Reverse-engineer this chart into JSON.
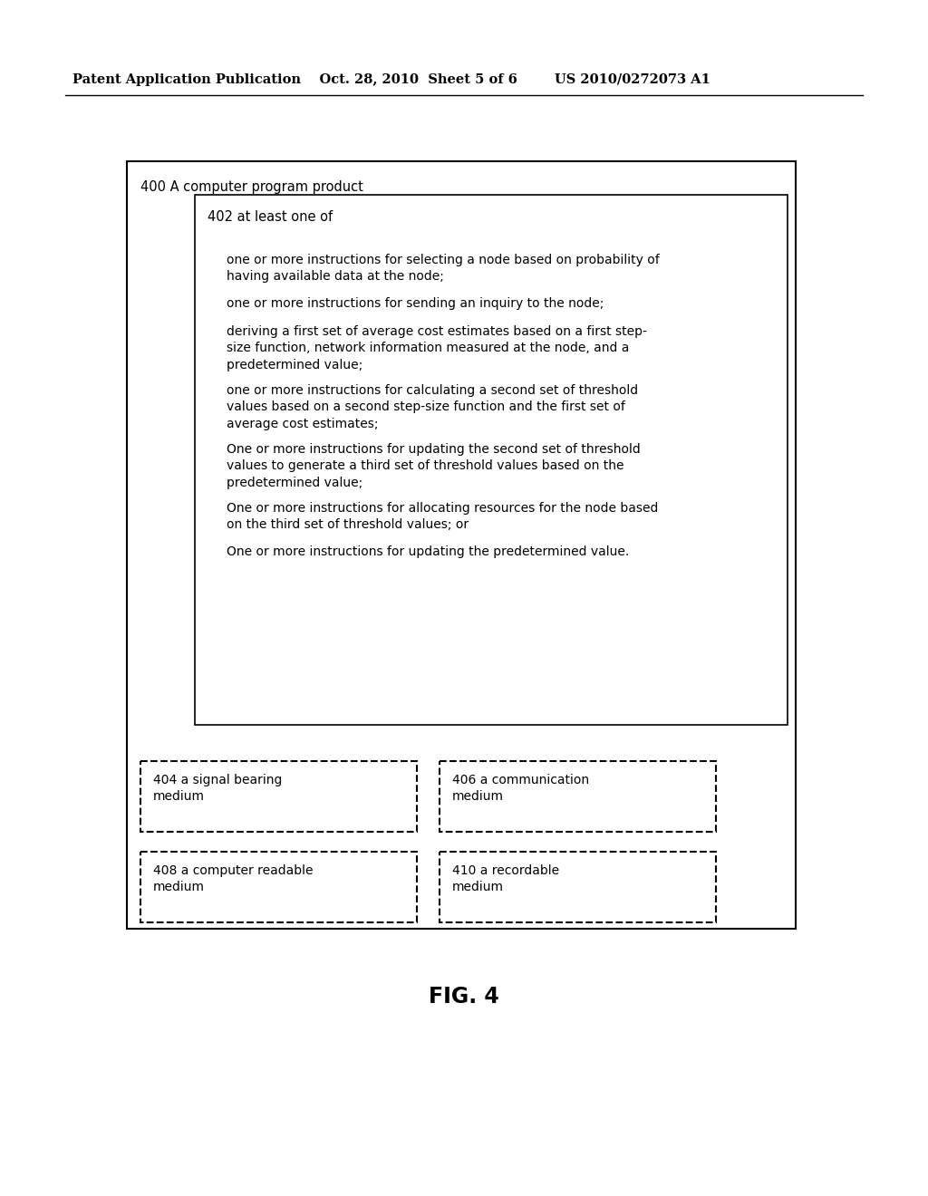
{
  "bg_color": "#ffffff",
  "header_line1": "Patent Application Publication    Oct. 28, 2010  Sheet 5 of 6        US 2010/0272073 A1",
  "fig_label": "FIG. 4",
  "outer_box_label": "400 A computer program product",
  "inner_box_label": "402 at least one of",
  "instructions": [
    "one or more instructions for selecting a node based on probability of\nhaving available data at the node;",
    "one or more instructions for sending an inquiry to the node;",
    "deriving a first set of average cost estimates based on a first step-\nsize function, network information measured at the node, and a\npredetermined value;",
    "one or more instructions for calculating a second set of threshold\nvalues based on a second step-size function and the first set of\naverage cost estimates;",
    "One or more instructions for updating the second set of threshold\nvalues to generate a third set of threshold values based on the\npredetermined value;",
    "One or more instructions for allocating resources for the node based\non the third set of threshold values; or",
    "One or more instructions for updating the predetermined value."
  ],
  "bottom_boxes": [
    {
      "label": "404 a signal bearing\nmedium",
      "col": 0,
      "row": 0
    },
    {
      "label": "406 a communication\nmedium",
      "col": 1,
      "row": 0
    },
    {
      "label": "408 a computer readable\nmedium",
      "col": 0,
      "row": 1
    },
    {
      "label": "410 a recordable\nmedium",
      "col": 1,
      "row": 1
    }
  ],
  "font_size_header": 10.5,
  "font_size_label": 10.5,
  "font_size_body": 10.0,
  "font_size_fig": 17
}
